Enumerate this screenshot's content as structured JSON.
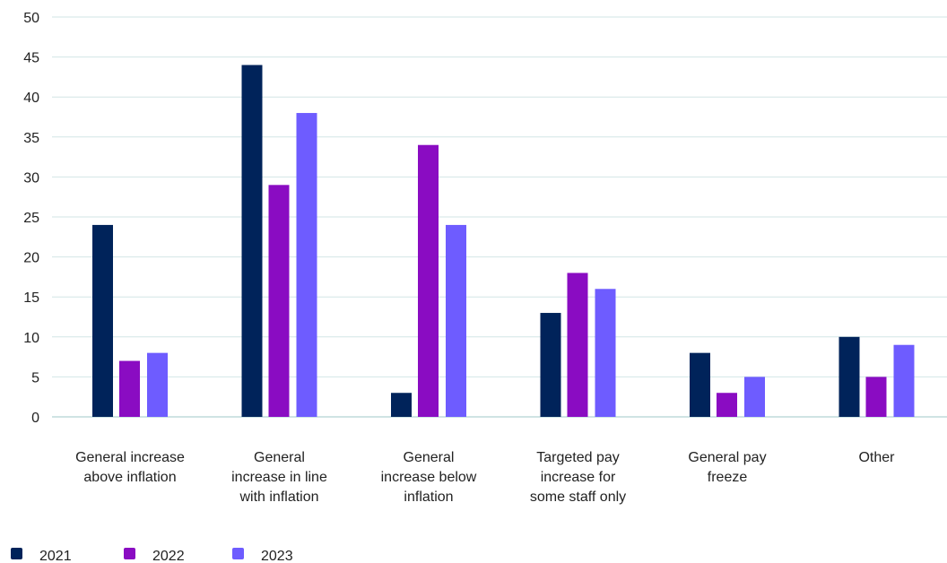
{
  "chart_data": {
    "type": "bar",
    "title": "",
    "xlabel": "",
    "ylabel": "",
    "ylim": [
      0,
      50
    ],
    "yticks": [
      0,
      5,
      10,
      15,
      20,
      25,
      30,
      35,
      40,
      45,
      50
    ],
    "grid": true,
    "legend_position": "bottom-left",
    "categories": [
      [
        "General increase",
        "above inflation"
      ],
      [
        "General",
        "increase in line",
        "with inflation"
      ],
      [
        "General",
        "increase below",
        "inflation"
      ],
      [
        "Targeted pay",
        "increase for",
        "some staff only"
      ],
      [
        "General pay",
        "freeze"
      ],
      [
        "Other"
      ]
    ],
    "series": [
      {
        "name": "2021",
        "color": "#00235a",
        "values": [
          24,
          44,
          3,
          13,
          8,
          10
        ]
      },
      {
        "name": "2022",
        "color": "#8a0cc2",
        "values": [
          7,
          29,
          34,
          18,
          3,
          5
        ]
      },
      {
        "name": "2023",
        "color": "#6e5cff",
        "values": [
          8,
          38,
          24,
          16,
          5,
          9
        ]
      }
    ]
  }
}
